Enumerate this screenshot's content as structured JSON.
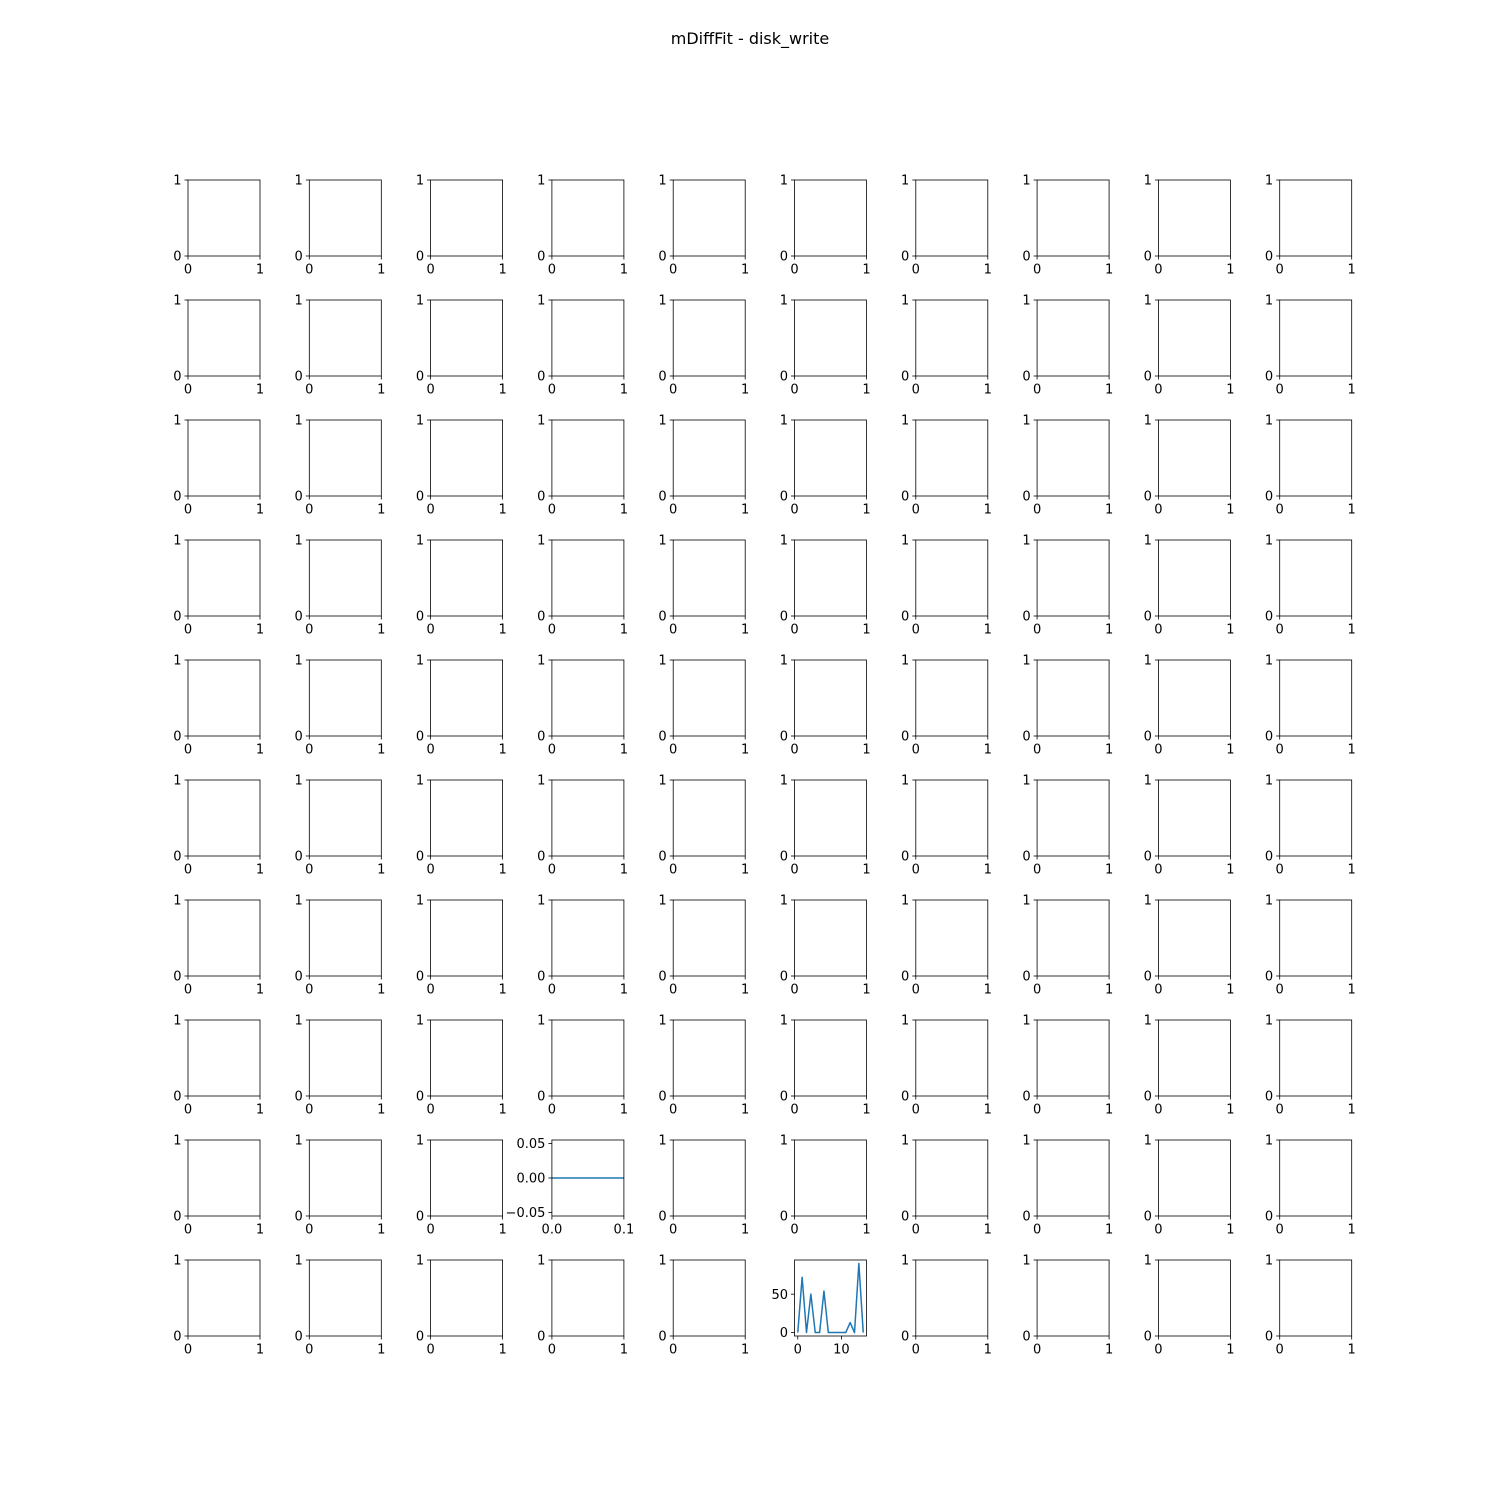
{
  "figure": {
    "title": "mDiffFit - disk_write",
    "rows": 10,
    "cols": 10,
    "colors": {
      "line": "#1f77b4",
      "axes": "#000000",
      "background": "#ffffff"
    }
  },
  "chart_data": {
    "type": "line",
    "title": "mDiffFit - disk_write",
    "layout": "grid 10x10 of small line subplots",
    "default_subplot": {
      "xlim": [
        0,
        1
      ],
      "ylim": [
        0,
        1
      ],
      "xticks": [
        0,
        1
      ],
      "xtick_labels": [
        "0",
        "1"
      ],
      "yticks": [
        0,
        1
      ],
      "ytick_labels": [
        "0",
        "1"
      ],
      "series": []
    },
    "subplots": [
      {
        "row": 9,
        "col": 4,
        "xlim": [
          0,
          0.1
        ],
        "ylim": [
          -0.055,
          0.055
        ],
        "xticks": [
          0,
          0.1
        ],
        "xtick_labels": [
          "0.0",
          "0.1"
        ],
        "yticks": [
          -0.05,
          0,
          0.05
        ],
        "ytick_labels": [
          "−0.05",
          "0.00",
          "0.05"
        ],
        "series": [
          {
            "x": [
              0,
              0.1
            ],
            "y": [
              0,
              0
            ]
          }
        ]
      },
      {
        "row": 10,
        "col": 6,
        "xlim": [
          -0.75,
          15.75
        ],
        "ylim": [
          -4.5,
          94.5
        ],
        "xticks": [
          0,
          10
        ],
        "xtick_labels": [
          "0",
          "10"
        ],
        "yticks": [
          0,
          50
        ],
        "ytick_labels": [
          "0",
          "50"
        ],
        "series": [
          {
            "x": [
              0,
              1,
              2,
              3,
              4,
              5,
              6,
              7,
              8,
              9,
              10,
              11,
              12,
              13,
              14,
              15
            ],
            "y": [
              0,
              72,
              0,
              50,
              0,
              0,
              54,
              0,
              0,
              0,
              0,
              0,
              13,
              0,
              90,
              0
            ]
          }
        ]
      }
    ]
  }
}
